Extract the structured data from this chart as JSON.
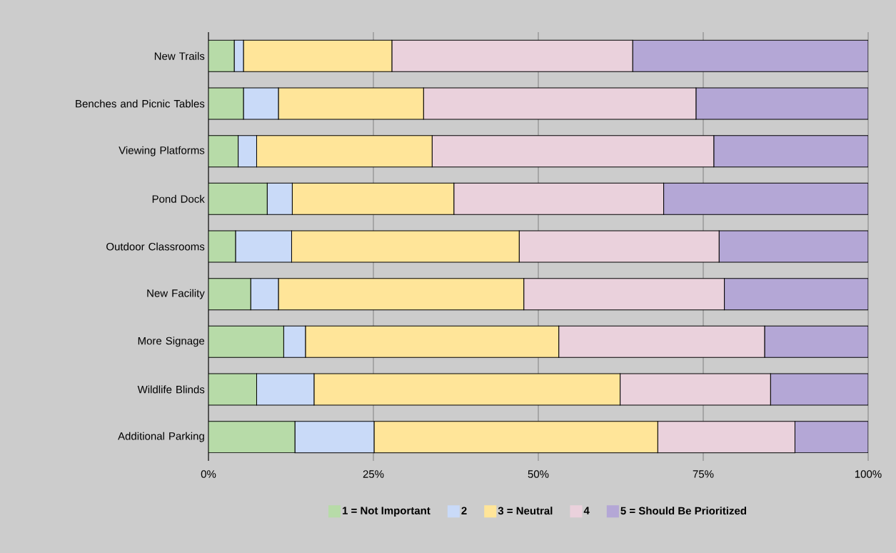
{
  "chart_data": {
    "type": "bar",
    "orientation": "horizontal",
    "stacked": true,
    "categories": [
      "New Trails",
      "Benches and Picnic Tables",
      "Viewing Platforms",
      "Pond Dock",
      "Outdoor Classrooms",
      "New Facility",
      "More Signage",
      "Wildlife Blinds",
      "Additional Parking"
    ],
    "series": [
      {
        "name": "1 = Not Important",
        "color": "#b7dba8",
        "values": [
          3.9,
          5.3,
          4.5,
          8.9,
          4.1,
          6.4,
          11.4,
          7.3,
          13.1
        ]
      },
      {
        "name": "2",
        "color": "#c9daf8",
        "values": [
          1.4,
          5.3,
          2.8,
          3.8,
          8.5,
          4.2,
          3.3,
          8.7,
          12.0
        ]
      },
      {
        "name": "3 = Neutral",
        "color": "#ffe599",
        "values": [
          22.5,
          22.0,
          26.6,
          24.5,
          34.5,
          37.2,
          38.4,
          46.4,
          43.0
        ]
      },
      {
        "name": "4",
        "color": "#ead1dc",
        "values": [
          36.5,
          41.3,
          42.7,
          31.8,
          30.3,
          30.4,
          31.2,
          22.8,
          20.8
        ]
      },
      {
        "name": "5 = Should Be Prioritized",
        "color": "#b4a7d6",
        "values": [
          35.7,
          26.1,
          23.4,
          31.0,
          22.6,
          21.8,
          15.7,
          14.8,
          11.1
        ]
      }
    ],
    "xlim": [
      0,
      100
    ],
    "xticks": [
      {
        "value": 0,
        "label": "0%"
      },
      {
        "value": 25,
        "label": "25%"
      },
      {
        "value": 50,
        "label": "50%"
      },
      {
        "value": 75,
        "label": "75%"
      },
      {
        "value": 100,
        "label": "100%"
      }
    ],
    "grid": "x",
    "legend": "bottom"
  }
}
